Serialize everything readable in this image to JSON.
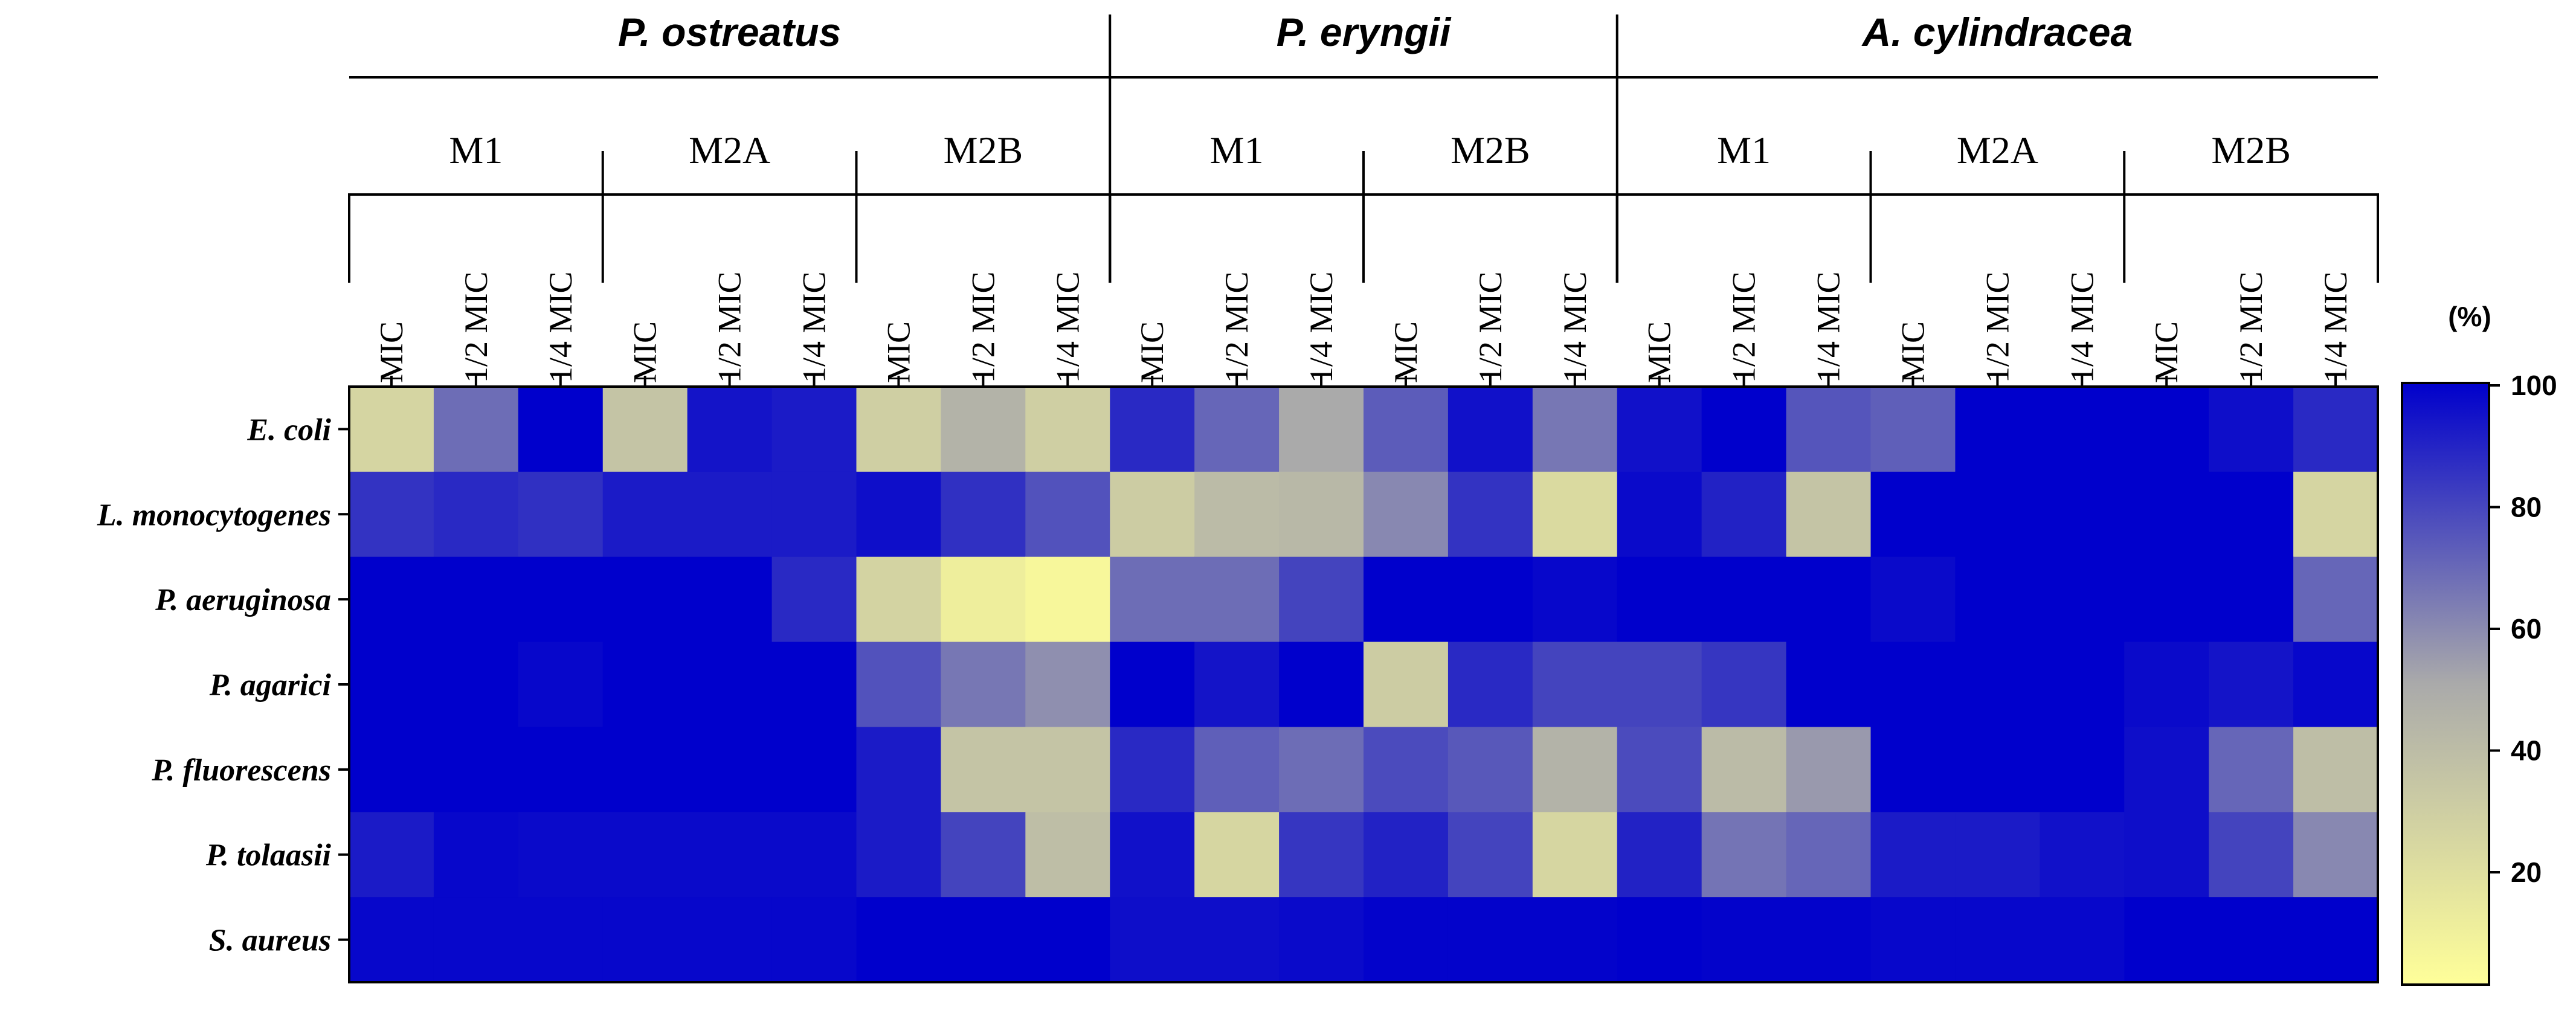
{
  "chart_data": {
    "type": "heatmap",
    "title": "",
    "colorbar": {
      "label": "(%)",
      "min": 0,
      "max": 100,
      "ticks": [
        "100",
        "80",
        "60",
        "40",
        "20"
      ],
      "tick_values": [
        100,
        80,
        60,
        40,
        20
      ],
      "colors": [
        "#ffff99",
        "#aaaaaa",
        "#0000cc"
      ]
    },
    "species_groups": [
      {
        "name": "P. ostreatus",
        "methods": [
          {
            "name": "M1",
            "concentrations": [
              "MIC",
              "1/2 MIC",
              "1/4 MIC"
            ]
          },
          {
            "name": "M2A",
            "concentrations": [
              "MIC",
              "1/2 MIC",
              "1/4 MIC"
            ]
          },
          {
            "name": "M2B",
            "concentrations": [
              "MIC",
              "1/2 MIC",
              "1/4 MIC"
            ]
          }
        ]
      },
      {
        "name": "P. eryngii",
        "methods": [
          {
            "name": "M1",
            "concentrations": [
              "MIC",
              "1/2 MIC",
              "1/4 MIC"
            ]
          },
          {
            "name": "M2B",
            "concentrations": [
              "MIC",
              "1/2 MIC",
              "1/4 MIC"
            ]
          }
        ]
      },
      {
        "name": "A. cylindracea",
        "methods": [
          {
            "name": "M1",
            "concentrations": [
              "MIC",
              "1/2 MIC",
              "1/4 MIC"
            ]
          },
          {
            "name": "M2A",
            "concentrations": [
              "MIC",
              "1/2 MIC",
              "1/4 MIC"
            ]
          },
          {
            "name": "M2B",
            "concentrations": [
              "MIC",
              "1/2 MIC",
              "1/4 MIC"
            ]
          }
        ]
      }
    ],
    "rows": [
      "E. coli",
      "L. monocytogenes",
      "P. aeruginosa",
      "P. agarici",
      "P. fluorescens",
      "P. tolaasii",
      "S. aureus"
    ],
    "values": [
      [
        25,
        68,
        100,
        35,
        94,
        92,
        28,
        45,
        28,
        88,
        70,
        50,
        73,
        95,
        65,
        95,
        100,
        75,
        72,
        100,
        100,
        100,
        96,
        88
      ],
      [
        85,
        88,
        86,
        92,
        92,
        92,
        96,
        86,
        76,
        30,
        40,
        42,
        60,
        85,
        22,
        97,
        90,
        35,
        100,
        100,
        100,
        100,
        100,
        25
      ],
      [
        100,
        100,
        100,
        100,
        100,
        88,
        26,
        10,
        5,
        68,
        68,
        80,
        100,
        100,
        98,
        100,
        100,
        100,
        97,
        100,
        100,
        100,
        100,
        70
      ],
      [
        100,
        100,
        98,
        100,
        100,
        100,
        76,
        65,
        58,
        100,
        94,
        100,
        30,
        88,
        80,
        80,
        84,
        100,
        100,
        100,
        100,
        97,
        94,
        98
      ],
      [
        100,
        100,
        100,
        100,
        100,
        100,
        92,
        35,
        35,
        88,
        72,
        68,
        78,
        74,
        45,
        78,
        40,
        55,
        100,
        100,
        100,
        96,
        70,
        38
      ],
      [
        92,
        98,
        97,
        97,
        97,
        97,
        92,
        80,
        38,
        95,
        24,
        84,
        90,
        80,
        24,
        90,
        66,
        70,
        92,
        92,
        95,
        96,
        80,
        60
      ],
      [
        98,
        98,
        98,
        98,
        98,
        98,
        100,
        100,
        100,
        96,
        96,
        97,
        99,
        99,
        99,
        100,
        99,
        99,
        98,
        98,
        98,
        100,
        100,
        100
      ]
    ]
  }
}
